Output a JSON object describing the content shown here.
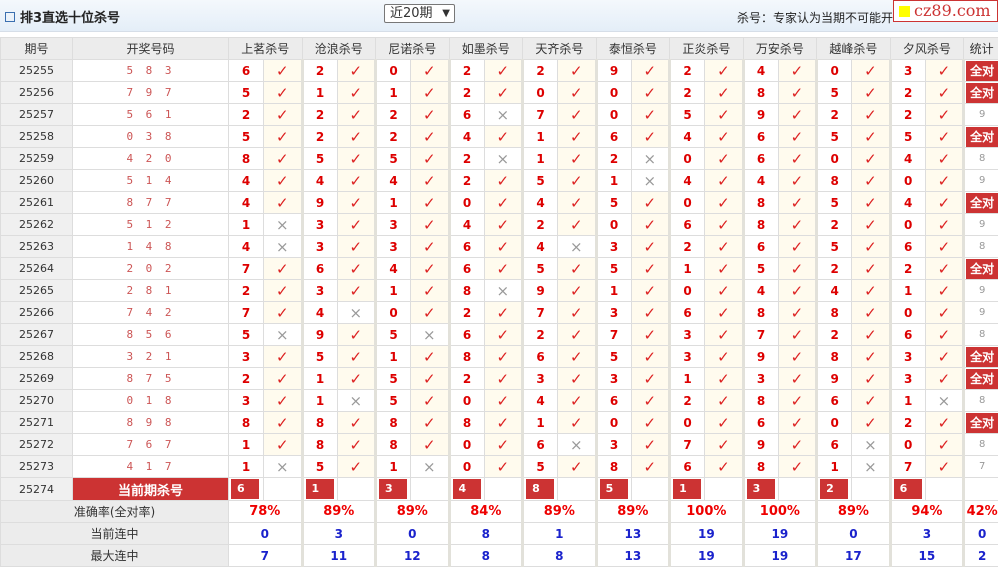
{
  "header": {
    "title": "排3直选十位杀号",
    "period_select": "近20期",
    "note": "杀号：专家认为当期不可能开",
    "logo": "cz89.com"
  },
  "columns": {
    "issue": "期号",
    "draw": "开奖号码",
    "stat": "统计"
  },
  "experts": [
    "上茗杀号",
    "沧浪杀号",
    "尼诺杀号",
    "如墨杀号",
    "天齐杀号",
    "泰恒杀号",
    "正炎杀号",
    "万安杀号",
    "越峰杀号",
    "夕风杀号"
  ],
  "marks": {
    "hit": "✓",
    "miss": "×"
  },
  "all_correct_label": "全对",
  "rows": [
    {
      "issue": "25255",
      "draw": "5 8 3",
      "kills": [
        6,
        2,
        0,
        2,
        2,
        9,
        2,
        4,
        0,
        3
      ],
      "stat": "全对"
    },
    {
      "issue": "25256",
      "draw": "7 9 7",
      "kills": [
        5,
        1,
        1,
        2,
        0,
        0,
        2,
        8,
        5,
        2
      ],
      "stat": "全对"
    },
    {
      "issue": "25257",
      "draw": "5 6 1",
      "kills": [
        2,
        2,
        2,
        6,
        7,
        0,
        5,
        9,
        2,
        2
      ],
      "stat": "9"
    },
    {
      "issue": "25258",
      "draw": "0 3 8",
      "kills": [
        5,
        2,
        2,
        4,
        1,
        6,
        4,
        6,
        5,
        5
      ],
      "stat": "全对"
    },
    {
      "issue": "25259",
      "draw": "4 2 0",
      "kills": [
        8,
        5,
        5,
        2,
        1,
        2,
        0,
        6,
        0,
        4
      ],
      "stat": "8"
    },
    {
      "issue": "25260",
      "draw": "5 1 4",
      "kills": [
        4,
        4,
        4,
        2,
        5,
        1,
        4,
        4,
        8,
        0
      ],
      "stat": "9"
    },
    {
      "issue": "25261",
      "draw": "8 7 7",
      "kills": [
        4,
        9,
        1,
        0,
        4,
        5,
        0,
        8,
        5,
        4
      ],
      "stat": "全对"
    },
    {
      "issue": "25262",
      "draw": "5 1 2",
      "kills": [
        1,
        3,
        3,
        4,
        2,
        0,
        6,
        8,
        2,
        0
      ],
      "stat": "9"
    },
    {
      "issue": "25263",
      "draw": "1 4 8",
      "kills": [
        4,
        3,
        3,
        6,
        4,
        3,
        2,
        6,
        5,
        6
      ],
      "stat": "8"
    },
    {
      "issue": "25264",
      "draw": "2 0 2",
      "kills": [
        7,
        6,
        4,
        6,
        5,
        5,
        1,
        5,
        2,
        2
      ],
      "stat": "全对"
    },
    {
      "issue": "25265",
      "draw": "2 8 1",
      "kills": [
        2,
        3,
        1,
        8,
        9,
        1,
        0,
        4,
        4,
        1
      ],
      "stat": "9"
    },
    {
      "issue": "25266",
      "draw": "7 4 2",
      "kills": [
        7,
        4,
        0,
        2,
        7,
        3,
        6,
        8,
        8,
        0
      ],
      "stat": "9"
    },
    {
      "issue": "25267",
      "draw": "8 5 6",
      "kills": [
        5,
        9,
        5,
        6,
        2,
        7,
        3,
        7,
        2,
        6
      ],
      "stat": "8"
    },
    {
      "issue": "25268",
      "draw": "3 2 1",
      "kills": [
        3,
        5,
        1,
        8,
        6,
        5,
        3,
        9,
        8,
        3
      ],
      "stat": "全对"
    },
    {
      "issue": "25269",
      "draw": "8 7 5",
      "kills": [
        2,
        1,
        5,
        2,
        3,
        3,
        1,
        3,
        9,
        3
      ],
      "stat": "全对"
    },
    {
      "issue": "25270",
      "draw": "0 1 8",
      "kills": [
        3,
        1,
        5,
        0,
        4,
        6,
        2,
        8,
        6,
        1
      ],
      "stat": "8"
    },
    {
      "issue": "25271",
      "draw": "8 9 8",
      "kills": [
        8,
        8,
        8,
        8,
        1,
        0,
        0,
        6,
        0,
        2
      ],
      "stat": "全对"
    },
    {
      "issue": "25272",
      "draw": "7 6 7",
      "kills": [
        1,
        8,
        8,
        0,
        6,
        3,
        7,
        9,
        6,
        0
      ],
      "stat": "8"
    },
    {
      "issue": "25273",
      "draw": "4 1 7",
      "kills": [
        1,
        5,
        1,
        0,
        5,
        8,
        6,
        8,
        1,
        7
      ],
      "stat": "7"
    }
  ],
  "current": {
    "issue": "25274",
    "label": "当前期杀号",
    "kills": [
      6,
      1,
      3,
      4,
      8,
      5,
      1,
      3,
      2,
      6
    ]
  },
  "summary": [
    {
      "label": "准确率(全对率)",
      "values": [
        "78%",
        "89%",
        "89%",
        "84%",
        "89%",
        "89%",
        "100%",
        "100%",
        "89%",
        "94%"
      ],
      "stat": "42%"
    },
    {
      "label": "当前连中",
      "values": [
        "0",
        "3",
        "0",
        "8",
        "1",
        "13",
        "19",
        "19",
        "0",
        "3"
      ],
      "stat": "0"
    },
    {
      "label": "最大连中",
      "values": [
        "7",
        "11",
        "12",
        "8",
        "8",
        "13",
        "19",
        "19",
        "17",
        "15"
      ],
      "stat": "2"
    }
  ]
}
